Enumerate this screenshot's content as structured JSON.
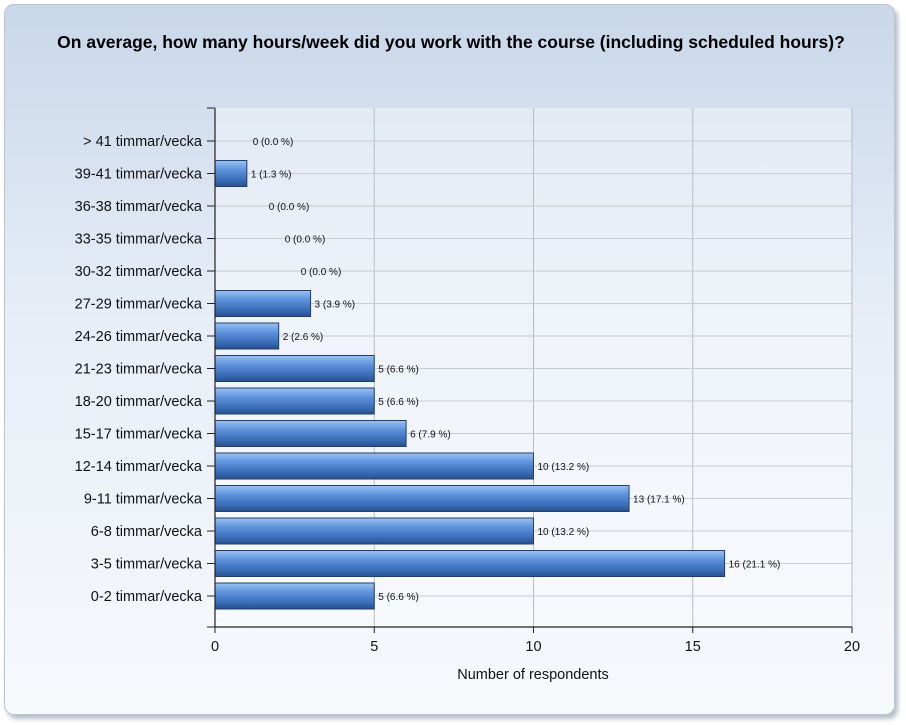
{
  "chart_data": {
    "type": "bar",
    "orientation": "horizontal",
    "title": "On average, how many hours/week did you work with the course (including scheduled hours)?",
    "xlabel": "Number of respondents",
    "ylabel": "",
    "xlim": [
      0,
      20
    ],
    "xticks": [
      0,
      5,
      10,
      15,
      20
    ],
    "grid": true,
    "categories": [
      "> 41 timmar/vecka",
      "39-41 timmar/vecka",
      "36-38 timmar/vecka",
      "33-35 timmar/vecka",
      "30-32 timmar/vecka",
      "27-29 timmar/vecka",
      "24-26 timmar/vecka",
      "21-23 timmar/vecka",
      "18-20 timmar/vecka",
      "15-17 timmar/vecka",
      "12-14 timmar/vecka",
      "9-11 timmar/vecka",
      "6-8 timmar/vecka",
      "3-5 timmar/vecka",
      "0-2 timmar/vecka"
    ],
    "values": [
      0,
      1,
      0,
      0,
      0,
      3,
      2,
      5,
      5,
      6,
      10,
      13,
      10,
      16,
      5
    ],
    "data_labels": [
      "0 (0.0 %)",
      "1 (1.3 %)",
      "0 (0.0 %)",
      "0 (0.0 %)",
      "0 (0.0 %)",
      "3 (3.9 %)",
      "2 (2.6 %)",
      "5 (6.6 %)",
      "5 (6.6 %)",
      "6 (7.9 %)",
      "10 (13.2 %)",
      "13 (17.1 %)",
      "10 (13.2 %)",
      "16 (21.1 %)",
      "5 (6.6 %)"
    ],
    "bar_color": "#5a8fd6"
  }
}
